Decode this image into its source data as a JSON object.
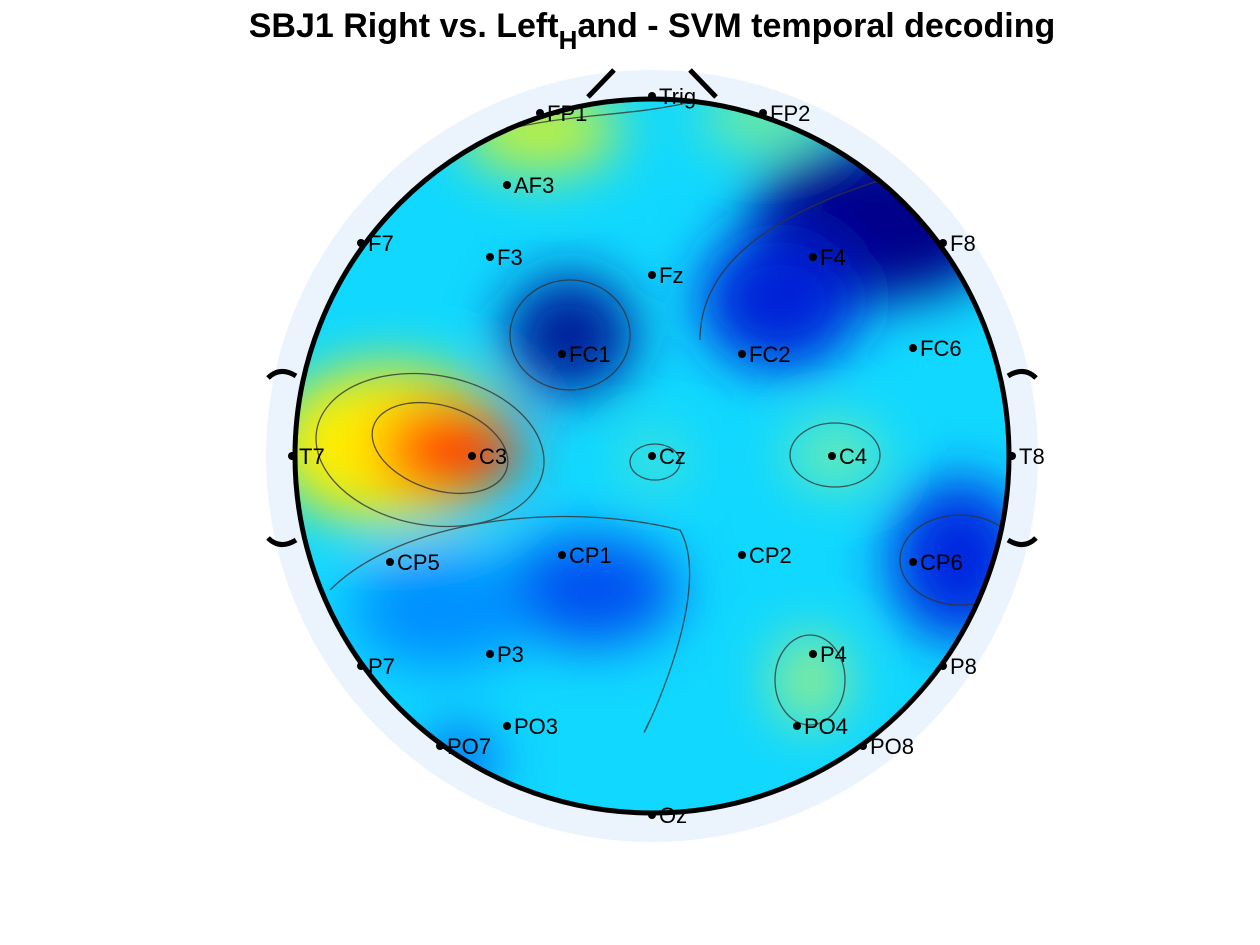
{
  "chart_data": {
    "type": "topoplot",
    "title": "SBJ1 Right vs. Left",
    "title_subscript": "H",
    "title_end": "and - SVM temporal decoding",
    "electrodes": [
      "Trig",
      "FP1",
      "FP2",
      "AF3",
      "F7",
      "F3",
      "Fz",
      "F4",
      "F8",
      "FC1",
      "FC2",
      "FC6",
      "T7",
      "C3",
      "Cz",
      "C4",
      "T8",
      "CP5",
      "CP1",
      "CP2",
      "CP6",
      "P7",
      "P3",
      "P4",
      "P8",
      "PO3",
      "PO4",
      "PO7",
      "PO8",
      "Oz"
    ]
  }
}
